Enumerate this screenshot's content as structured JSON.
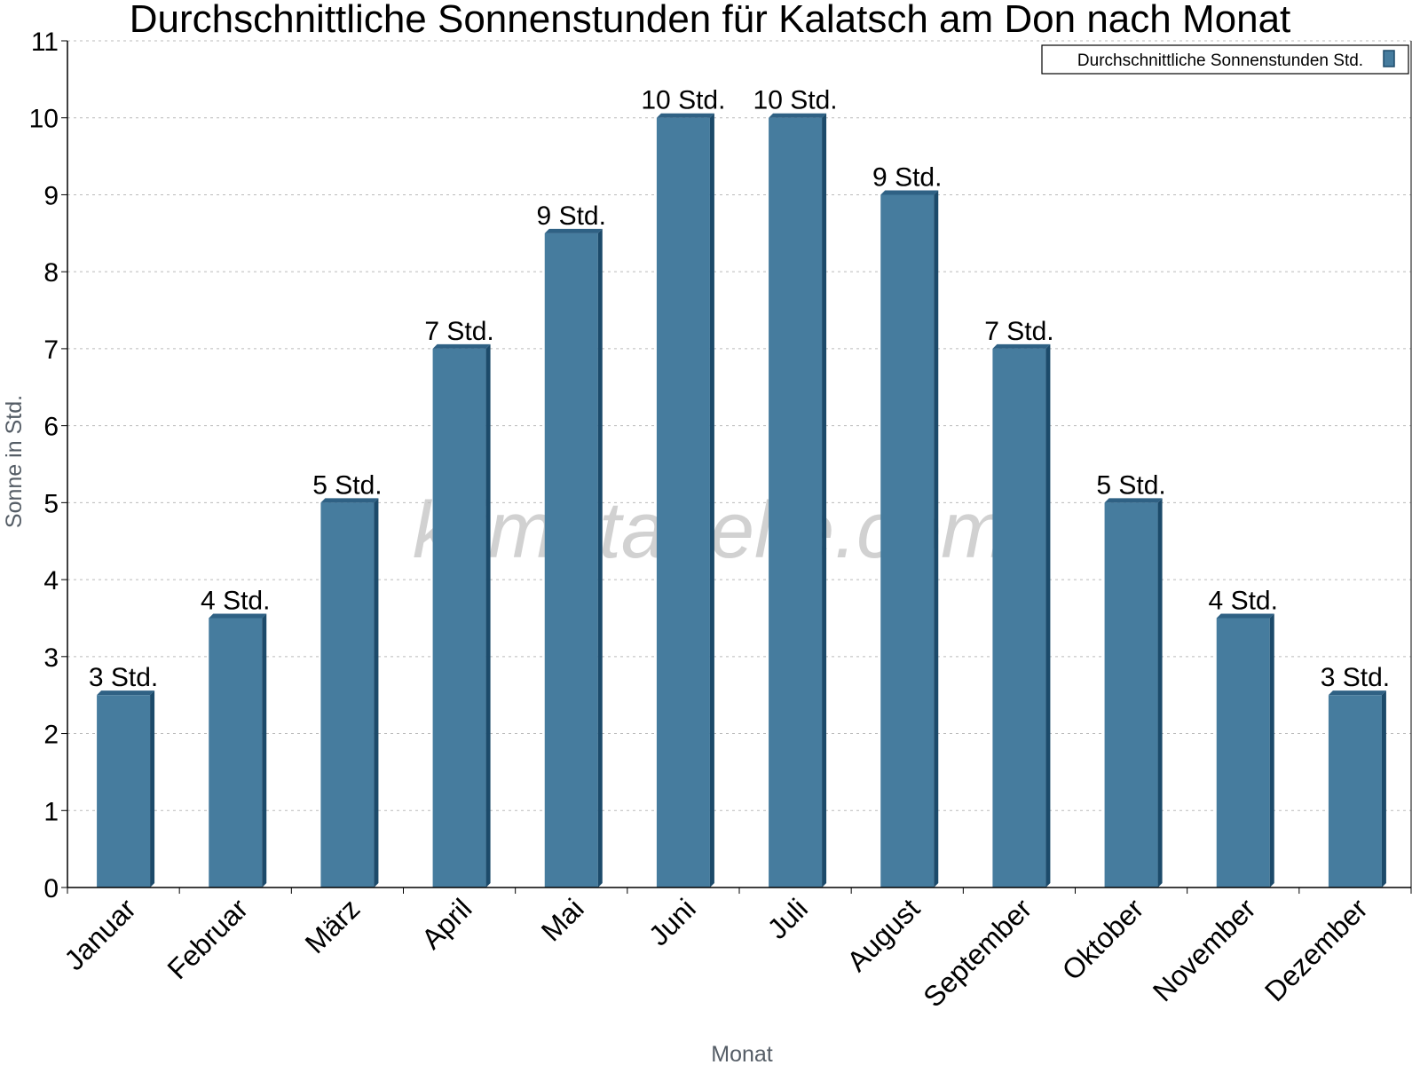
{
  "chart_data": {
    "type": "bar",
    "title": "Durchschnittliche Sonnenstunden für Kalatsch am Don nach Monat",
    "xlabel": "Monat",
    "ylabel": "Sonne in Std.",
    "ylim": [
      0,
      11
    ],
    "yticks": [
      "0",
      "1",
      "2",
      "3",
      "4",
      "5",
      "6",
      "7",
      "8",
      "9",
      "10",
      "11"
    ],
    "grid": true,
    "legend_position": "top-right",
    "categories": [
      "Januar",
      "Februar",
      "März",
      "April",
      "Mai",
      "Juni",
      "Juli",
      "August",
      "September",
      "Oktober",
      "November",
      "Dezember"
    ],
    "series": [
      {
        "name": "Durchschnittliche Sonnenstunden Std.",
        "values": [
          2.5,
          3.5,
          5,
          7,
          8.5,
          10,
          10,
          9,
          7,
          5,
          3.5,
          2.5
        ],
        "labels": [
          "3 Std.",
          "4 Std.",
          "5 Std.",
          "7 Std.",
          "9 Std.",
          "10 Std.",
          "10 Std.",
          "9 Std.",
          "7 Std.",
          "5 Std.",
          "4 Std.",
          "3 Std."
        ]
      }
    ],
    "colors": {
      "bar_front": "#467c9e",
      "bar_side": "#1c4a6a",
      "bar_top": "#2f6184"
    }
  },
  "watermark": "klimatabelle.com"
}
